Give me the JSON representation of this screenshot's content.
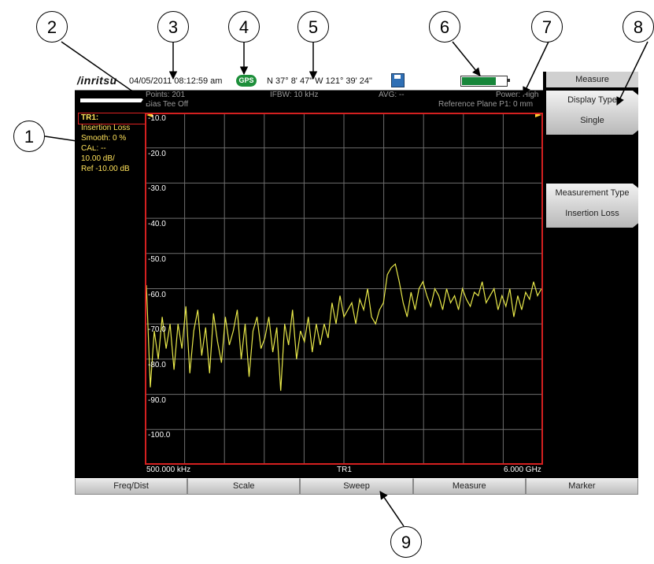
{
  "status_bar": {
    "logo": "/inritsu",
    "datetime": "04/05/2011 08:12:59 am",
    "gps_badge": "GPS",
    "coordinates": "N 37° 8' 47\"  W 121° 39' 24\""
  },
  "info": {
    "points": "Points: 201",
    "ifbw": "IFBW: 10 kHz",
    "avg": "AVG: --",
    "power": "Power: High",
    "bias_tee": "Bias Tee Off",
    "reference_plane": "Reference Plane P1: 0 mm"
  },
  "trace_panel": {
    "trace": "TR1:",
    "measurement": "Insertion Loss",
    "smooth": "Smooth: 0 %",
    "cal": "CAL: --",
    "scale": "10.00 dB/",
    "ref": "Ref -10.00 dB"
  },
  "y_ticks": [
    "-10.0",
    "-20.0",
    "-30.0",
    "-40.0",
    "-50.0",
    "-60.0",
    "-70.0",
    "-80.0",
    "-90.0",
    "-100.0"
  ],
  "x_axis": {
    "start": "500.000 kHz",
    "center": "TR1",
    "stop": "6.000 GHz"
  },
  "side_menu": {
    "title": "Measure",
    "display_type_label": "Display Type",
    "display_type_value": "Single",
    "measurement_type_label": "Measurement Type",
    "measurement_type_value": "Insertion Loss"
  },
  "bottom_menu": [
    "Freq/Dist",
    "Scale",
    "Sweep",
    "Measure",
    "Marker"
  ],
  "callouts": [
    "1",
    "2",
    "3",
    "4",
    "5",
    "6",
    "7",
    "8",
    "9"
  ],
  "colors": {
    "trace": "#e8e84a",
    "border": "#d42020",
    "grid": "#6e6e6e",
    "gps": "#1d8f3a",
    "battery": "#17863a"
  },
  "battery_level": 0.76,
  "chart_data": {
    "type": "line",
    "ylim": [
      -110,
      -10
    ],
    "xlim_hz": [
      500000,
      6000000000
    ],
    "x_fraction": [
      0.0,
      0.01,
      0.02,
      0.03,
      0.04,
      0.05,
      0.06,
      0.07,
      0.08,
      0.09,
      0.1,
      0.11,
      0.12,
      0.13,
      0.14,
      0.15,
      0.16,
      0.17,
      0.18,
      0.19,
      0.2,
      0.21,
      0.22,
      0.23,
      0.24,
      0.25,
      0.26,
      0.27,
      0.28,
      0.29,
      0.3,
      0.31,
      0.32,
      0.33,
      0.34,
      0.35,
      0.36,
      0.37,
      0.38,
      0.39,
      0.4,
      0.41,
      0.42,
      0.43,
      0.44,
      0.45,
      0.46,
      0.47,
      0.48,
      0.49,
      0.5,
      0.51,
      0.52,
      0.53,
      0.54,
      0.55,
      0.56,
      0.57,
      0.58,
      0.59,
      0.6,
      0.61,
      0.62,
      0.63,
      0.64,
      0.65,
      0.66,
      0.67,
      0.68,
      0.69,
      0.7,
      0.71,
      0.72,
      0.73,
      0.74,
      0.75,
      0.76,
      0.77,
      0.78,
      0.79,
      0.8,
      0.81,
      0.82,
      0.83,
      0.84,
      0.85,
      0.86,
      0.87,
      0.88,
      0.89,
      0.9,
      0.91,
      0.92,
      0.93,
      0.94,
      0.95,
      0.96,
      0.97,
      0.98,
      0.99,
      1.0
    ],
    "values": [
      -59,
      -88,
      -72,
      -80,
      -68,
      -77,
      -70,
      -83,
      -70,
      -77,
      -65,
      -84,
      -72,
      -66,
      -79,
      -71,
      -84,
      -67,
      -75,
      -81,
      -68,
      -76,
      -72,
      -66,
      -80,
      -70,
      -85,
      -72,
      -68,
      -77,
      -74,
      -68,
      -78,
      -71,
      -89,
      -70,
      -76,
      -66,
      -80,
      -72,
      -75,
      -68,
      -78,
      -70,
      -76,
      -70,
      -74,
      -64,
      -70,
      -62,
      -68,
      -66,
      -64,
      -70,
      -63,
      -66,
      -60,
      -68,
      -70,
      -66,
      -64,
      -56,
      -54,
      -53,
      -58,
      -64,
      -68,
      -61,
      -66,
      -60,
      -58,
      -62,
      -65,
      -60,
      -62,
      -66,
      -60,
      -64,
      -62,
      -66,
      -60,
      -63,
      -65,
      -61,
      -62,
      -58,
      -64,
      -62,
      -60,
      -66,
      -62,
      -65,
      -60,
      -68,
      -62,
      -66,
      -61,
      -63,
      -58,
      -62,
      -60
    ]
  }
}
